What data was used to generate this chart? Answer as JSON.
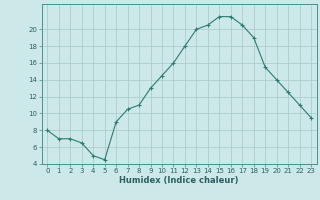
{
  "xlabel": "Humidex (Indice chaleur)",
  "x": [
    0,
    1,
    2,
    3,
    4,
    5,
    6,
    7,
    8,
    9,
    10,
    11,
    12,
    13,
    14,
    15,
    16,
    17,
    18,
    19,
    20,
    21,
    22,
    23
  ],
  "y": [
    8,
    7,
    7,
    6.5,
    5,
    4.5,
    9,
    10.5,
    11,
    13,
    14.5,
    16,
    18,
    20,
    20.5,
    21.5,
    21.5,
    20.5,
    19,
    15.5,
    14,
    12.5,
    11,
    9.5
  ],
  "line_color": "#2d7d6e",
  "marker": "+",
  "marker_size": 3,
  "marker_lw": 0.8,
  "line_width": 0.8,
  "bg_color": "#cde8e8",
  "grid_color": "#a8c8c8",
  "ylim": [
    4,
    22
  ],
  "xlim": [
    -0.5,
    23.5
  ],
  "yticks": [
    4,
    6,
    8,
    10,
    12,
    14,
    16,
    18,
    20
  ],
  "xticks": [
    0,
    1,
    2,
    3,
    4,
    5,
    6,
    7,
    8,
    9,
    10,
    11,
    12,
    13,
    14,
    15,
    16,
    17,
    18,
    19,
    20,
    21,
    22,
    23
  ],
  "tick_label_color": "#2d6060",
  "tick_label_size": 5.0,
  "xlabel_color": "#2d6060",
  "xlabel_size": 6.0,
  "axis_color": "#2d7d6e",
  "spine_color": "#4a9090"
}
